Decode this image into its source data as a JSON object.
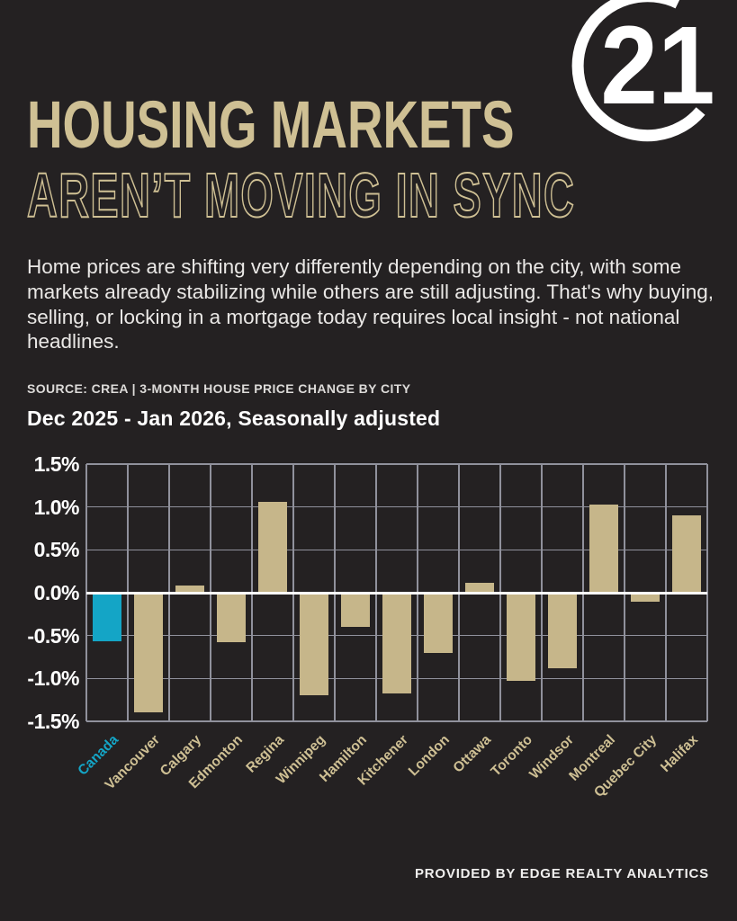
{
  "brand": {
    "logo_number": "21",
    "logo_name": "century-21"
  },
  "header": {
    "title_line1": "HOUSING MARKETS",
    "title_line2": "AREN’T MOVING IN SYNC"
  },
  "intro": "Home prices are shifting very differently depending on the city, with some markets already stabilizing while others are still adjusting. That's why buying, selling, or locking in a mortgage today requires local insight - not national headlines.",
  "source_line": "SOURCE: CREA | 3-MONTH HOUSE PRICE CHANGE BY CITY",
  "footer": "PROVIDED BY EDGE REALTY ANALYTICS",
  "colors": {
    "background": "#242122",
    "tan": "#cfc094",
    "bar": "#c6b68a",
    "highlight": "#14a5c6",
    "grid": "#90919c",
    "zero_line": "#ffffff",
    "text": "#eae8e6"
  },
  "chart_data": {
    "type": "bar",
    "title": "Dec 2025 - Jan 2026, Seasonally adjusted",
    "categories": [
      "Canada",
      "Vancouver",
      "Calgary",
      "Edmonton",
      "Regina",
      "Winnipeg",
      "Hamilton",
      "Kitchener",
      "London",
      "Ottawa",
      "Toronto",
      "Windsor",
      "Montreal",
      "Quebec City",
      "Halifax"
    ],
    "values": [
      -0.57,
      -1.4,
      0.08,
      -0.58,
      1.06,
      -1.2,
      -0.4,
      -1.18,
      -0.7,
      0.12,
      -1.03,
      -0.88,
      1.03,
      -0.1,
      0.9
    ],
    "unit": "%",
    "highlight_category": "Canada",
    "xlabel": "",
    "ylabel": "",
    "ylim": [
      -1.5,
      1.5
    ],
    "yticks": [
      "1.5%",
      "1.0%",
      "0.5%",
      "0.0%",
      "-0.5%",
      "-1.0%",
      "-1.5%"
    ],
    "ytick_values": [
      1.5,
      1.0,
      0.5,
      0.0,
      -0.5,
      -1.0,
      -1.5
    ],
    "grid": true,
    "legend": false
  }
}
